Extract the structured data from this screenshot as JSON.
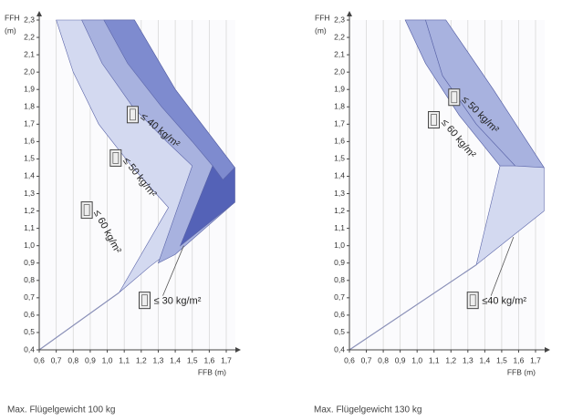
{
  "chart_data": [
    {
      "type": "region",
      "caption": "Max. Flügelgewicht 100 kg",
      "x_label": "FFB (m)",
      "y_label": "FFH",
      "y_unit": "(m)",
      "xlim": [
        0.6,
        1.7
      ],
      "ylim": [
        0.4,
        2.3
      ],
      "grid": true,
      "xticks": [
        {
          "value": 0.6,
          "label": "0,6"
        },
        {
          "value": 0.7,
          "label": "0,7"
        },
        {
          "value": 0.8,
          "label": "0,8"
        },
        {
          "value": 0.9,
          "label": "0,9"
        },
        {
          "value": 1.0,
          "label": "1,0"
        },
        {
          "value": 1.1,
          "label": "1,1"
        },
        {
          "value": 1.2,
          "label": "1,2"
        },
        {
          "value": 1.3,
          "label": "1,3"
        },
        {
          "value": 1.4,
          "label": "1,4"
        },
        {
          "value": 1.5,
          "label": "1,5"
        },
        {
          "value": 1.6,
          "label": "1,6"
        },
        {
          "value": 1.7,
          "label": "1,7"
        }
      ],
      "yticks": [
        {
          "value": 0.4,
          "label": "0,4"
        },
        {
          "value": 0.5,
          "label": "0,5"
        },
        {
          "value": 0.6,
          "label": "0,6"
        },
        {
          "value": 0.7,
          "label": "0,7"
        },
        {
          "value": 0.8,
          "label": "0,8"
        },
        {
          "value": 0.9,
          "label": "0,9"
        },
        {
          "value": 1.0,
          "label": "1,0"
        },
        {
          "value": 1.1,
          "label": "1,1"
        },
        {
          "value": 1.2,
          "label": "1,2"
        },
        {
          "value": 1.3,
          "label": "1,3"
        },
        {
          "value": 1.4,
          "label": "1,4"
        },
        {
          "value": 1.5,
          "label": "1,5"
        },
        {
          "value": 1.6,
          "label": "1,6"
        },
        {
          "value": 1.7,
          "label": "1,7"
        },
        {
          "value": 1.8,
          "label": "1,8"
        },
        {
          "value": 1.9,
          "label": "1,9"
        },
        {
          "value": 2.0,
          "label": "2,0"
        },
        {
          "value": 2.1,
          "label": "2,1"
        },
        {
          "value": 2.2,
          "label": "2,2"
        },
        {
          "value": 2.3,
          "label": "2,3"
        }
      ],
      "series": [
        {
          "name": "≤ 60 kg/m²",
          "color": "#d3d9f0",
          "x": [
            0.7,
            0.8,
            0.95,
            1.15,
            1.36,
            1.07,
            1.25,
            1.75,
            1.75,
            1.4,
            1.16
          ],
          "values": [
            2.3,
            2.0,
            1.7,
            1.45,
            1.22,
            0.73,
            0.88,
            1.25,
            1.45,
            1.9,
            2.3
          ]
        },
        {
          "name": "≤ 50 kg/m²",
          "color": "#a8b2df",
          "x": [
            0.85,
            0.97,
            1.15,
            1.35,
            1.5,
            1.3,
            1.4,
            1.75,
            1.75,
            1.4,
            1.16
          ],
          "values": [
            2.3,
            2.05,
            1.8,
            1.6,
            1.46,
            0.9,
            0.95,
            1.25,
            1.45,
            1.9,
            2.3
          ]
        },
        {
          "name": "≤ 40 kg/m²",
          "color": "#7e8bcf",
          "x": [
            0.98,
            1.12,
            1.32,
            1.5,
            1.62,
            1.43,
            1.75,
            1.75,
            1.4,
            1.16
          ],
          "values": [
            2.3,
            2.05,
            1.8,
            1.6,
            1.46,
            1.0,
            1.25,
            1.45,
            1.9,
            2.3
          ]
        },
        {
          "name": "≤ 30 kg/m²",
          "color": "#5462b7",
          "x": [
            1.62,
            1.68,
            1.75,
            1.75,
            1.43
          ],
          "values": [
            1.46,
            1.38,
            1.45,
            1.25,
            1.0
          ]
        },
        {
          "color": "#8a90b8",
          "x": [
            0.6,
            1.07
          ],
          "values": [
            0.4,
            0.73
          ]
        }
      ]
    },
    {
      "type": "region",
      "caption": "Max. Flügelgewicht 130 kg",
      "x_label": "FFB (m)",
      "y_label": "FFH",
      "y_unit": "(m)",
      "xlim": [
        0.6,
        1.7
      ],
      "ylim": [
        0.4,
        2.3
      ],
      "grid": true,
      "xticks": [
        {
          "value": 0.6,
          "label": "0,6"
        },
        {
          "value": 0.7,
          "label": "0,7"
        },
        {
          "value": 0.8,
          "label": "0,8"
        },
        {
          "value": 0.9,
          "label": "0,9"
        },
        {
          "value": 1.0,
          "label": "1,0"
        },
        {
          "value": 1.1,
          "label": "1,1"
        },
        {
          "value": 1.2,
          "label": "1,2"
        },
        {
          "value": 1.3,
          "label": "1,3"
        },
        {
          "value": 1.4,
          "label": "1,4"
        },
        {
          "value": 1.5,
          "label": "1,5"
        },
        {
          "value": 1.6,
          "label": "1,6"
        },
        {
          "value": 1.7,
          "label": "1,7"
        }
      ],
      "yticks": [
        {
          "value": 0.4,
          "label": "0,4"
        },
        {
          "value": 0.5,
          "label": "0,5"
        },
        {
          "value": 0.6,
          "label": "0,6"
        },
        {
          "value": 0.7,
          "label": "0,7"
        },
        {
          "value": 0.8,
          "label": "0,8"
        },
        {
          "value": 0.9,
          "label": "0,9"
        },
        {
          "value": 1.0,
          "label": "1,0"
        },
        {
          "value": 1.1,
          "label": "1,1"
        },
        {
          "value": 1.2,
          "label": "1,2"
        },
        {
          "value": 1.3,
          "label": "1,3"
        },
        {
          "value": 1.4,
          "label": "1,4"
        },
        {
          "value": 1.5,
          "label": "1,5"
        },
        {
          "value": 1.6,
          "label": "1,6"
        },
        {
          "value": 1.7,
          "label": "1,7"
        },
        {
          "value": 1.8,
          "label": "1,8"
        },
        {
          "value": 1.9,
          "label": "1,9"
        },
        {
          "value": 2.0,
          "label": "2,0"
        },
        {
          "value": 2.1,
          "label": "2,1"
        },
        {
          "value": 2.2,
          "label": "2,2"
        },
        {
          "value": 2.3,
          "label": "2,3"
        }
      ],
      "series": [
        {
          "name": "≤40 kg/m²",
          "color": "#d3d9f0",
          "x": [
            0.93,
            1.05,
            1.25,
            1.49,
            1.35,
            1.75,
            1.75,
            1.45,
            1.17
          ],
          "values": [
            2.3,
            2.05,
            1.75,
            1.46,
            0.89,
            1.2,
            1.45,
            1.9,
            2.3
          ]
        },
        {
          "name": "≤ 60 kg/m²",
          "color": "#a8b2df",
          "x": [
            0.93,
            1.05,
            1.25,
            1.49,
            1.58,
            1.35,
            1.15,
            1.05
          ],
          "values": [
            2.3,
            2.05,
            1.75,
            1.46,
            1.46,
            1.7,
            1.98,
            2.3
          ]
        },
        {
          "name": "≤ 50 kg/m²",
          "color": "#a8b2df",
          "x": [
            1.05,
            1.15,
            1.35,
            1.58,
            1.75,
            1.45,
            1.17
          ],
          "values": [
            2.3,
            1.98,
            1.7,
            1.46,
            1.45,
            1.9,
            2.3
          ]
        },
        {
          "color": "#8a90b8",
          "x": [
            0.6,
            1.35
          ],
          "values": [
            0.4,
            0.89
          ]
        }
      ]
    }
  ]
}
